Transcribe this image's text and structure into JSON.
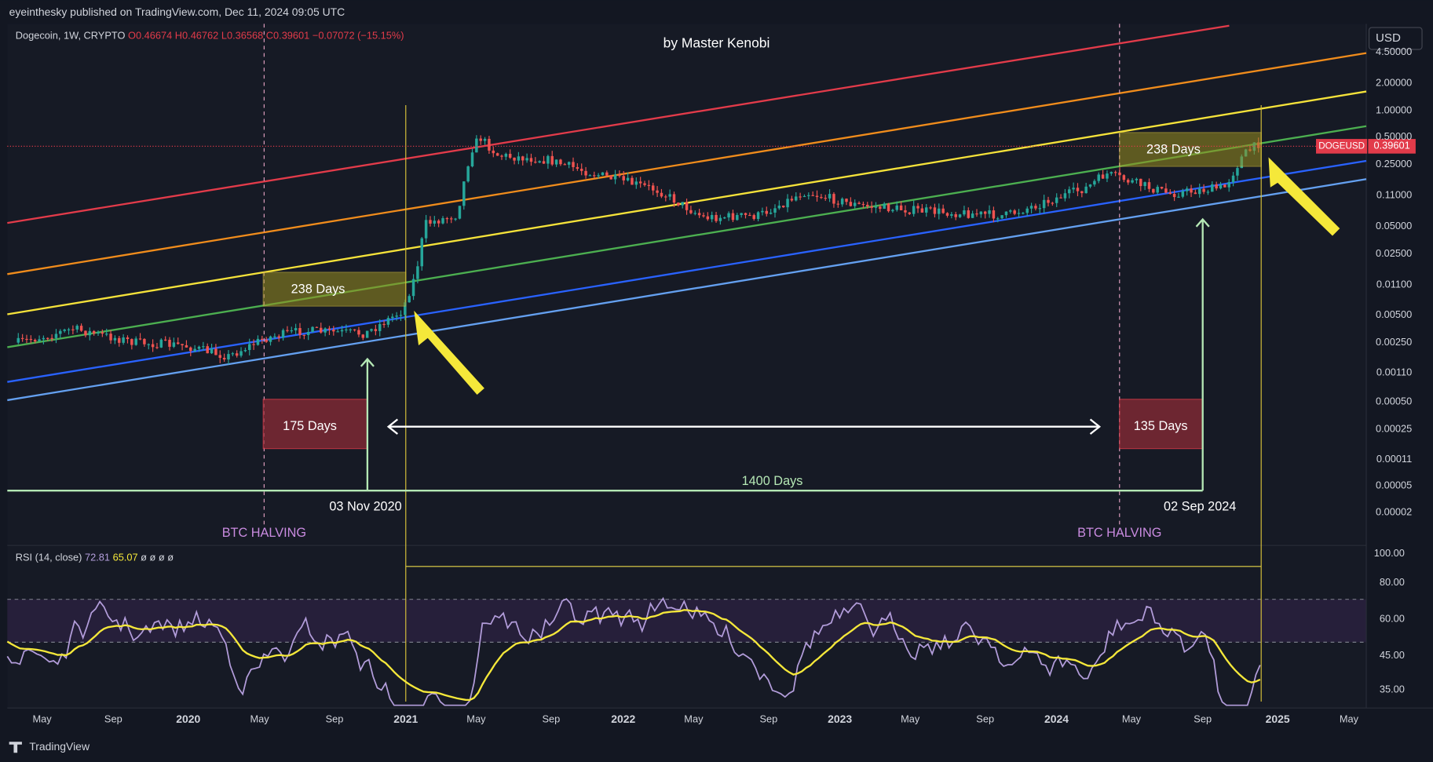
{
  "header": {
    "publisher": "eyeinthesky published on TradingView.com, Dec 11, 2024 09:05 UTC"
  },
  "legend": {
    "symbol": "Dogecoin, 1W, CRYPTO",
    "open": "O0.46674",
    "high": "H0.46762",
    "low": "L0.36568",
    "close": "C0.39601",
    "change": "−0.07072 (−15.15%)"
  },
  "title": "by Master Kenobi",
  "currency": "USD",
  "price_axis": [
    "4.50000",
    "2.00000",
    "1.00000",
    "0.50000",
    "0.25000",
    "0.11000",
    "0.05000",
    "0.02500",
    "0.01100",
    "0.00500",
    "0.00250",
    "0.00110",
    "0.00050",
    "0.00025",
    "0.00011",
    "0.00005",
    "0.00002"
  ],
  "symbol_tag": {
    "name": "DOGEUSD",
    "price": "0.39601"
  },
  "annotations": {
    "box_left": "238 Days",
    "box_right": "238 Days",
    "red_left": "175 Days",
    "red_right": "135 Days",
    "span": "1400 Days",
    "date_left": "03 Nov 2020",
    "date_right": "02 Sep 2024",
    "halving_left": "BTC HALVING",
    "halving_right": "BTC HALVING"
  },
  "rsi": {
    "label": "RSI (14, close)",
    "value": "72.81",
    "ma": "65.07",
    "extras": "ø ø ø ø"
  },
  "rsi_axis": [
    "100.00",
    "80.00",
    "60.00",
    "45.00",
    "35.00"
  ],
  "time_axis": [
    "May",
    "Sep",
    "2020",
    "May",
    "Sep",
    "2021",
    "May",
    "Sep",
    "2022",
    "May",
    "Sep",
    "2023",
    "May",
    "Sep",
    "2024",
    "May",
    "Sep",
    "2025",
    "May"
  ],
  "footer": "TradingView"
}
